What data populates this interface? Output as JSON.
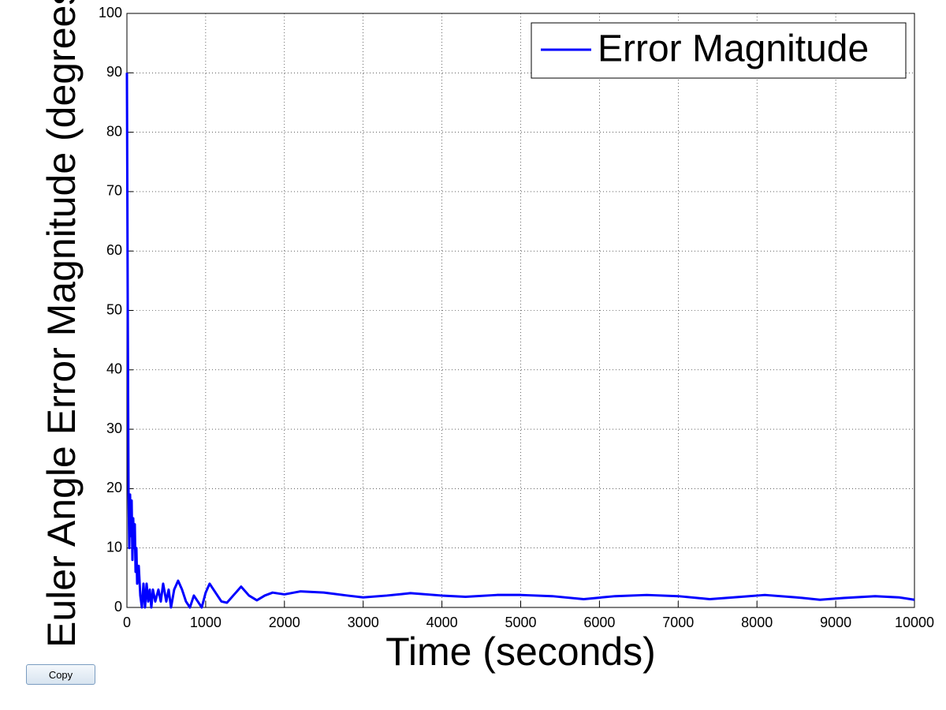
{
  "chart_data": {
    "type": "line",
    "xlabel": "Time (seconds)",
    "ylabel": "Euler Angle Error Magnitude (degrees)",
    "x": [
      0,
      10,
      20,
      30,
      40,
      50,
      60,
      70,
      80,
      90,
      100,
      110,
      120,
      130,
      150,
      170,
      190,
      210,
      230,
      250,
      270,
      290,
      310,
      330,
      360,
      400,
      430,
      460,
      500,
      530,
      560,
      600,
      650,
      700,
      750,
      800,
      850,
      900,
      950,
      1000,
      1050,
      1100,
      1200,
      1270,
      1350,
      1450,
      1550,
      1650,
      1750,
      1850,
      2000,
      2200,
      2500,
      2800,
      3000,
      3300,
      3600,
      4000,
      4300,
      4700,
      5000,
      5400,
      5800,
      6200,
      6600,
      7000,
      7400,
      7800,
      8100,
      8500,
      8800,
      9100,
      9500,
      9800,
      10000
    ],
    "series": [
      {
        "name": "Error Magnitude",
        "color": "#0000ff",
        "values": [
          90,
          52,
          20,
          10,
          19,
          12,
          18,
          8,
          15,
          10,
          14,
          6,
          10,
          4,
          7,
          2,
          0,
          4,
          0,
          4,
          1,
          3,
          0,
          3,
          1,
          3,
          1,
          4,
          1,
          3,
          0,
          3,
          4.5,
          3,
          1,
          0,
          2,
          1,
          0,
          2.5,
          4,
          3,
          1,
          0.8,
          2,
          3.5,
          2,
          1.2,
          2,
          2.5,
          2.2,
          2.7,
          2.5,
          2,
          1.7,
          2,
          2.4,
          2,
          1.8,
          2.1,
          2.1,
          1.9,
          1.4,
          1.9,
          2.1,
          1.9,
          1.4,
          1.8,
          2.1,
          1.7,
          1.3,
          1.6,
          1.9,
          1.7,
          1.3
        ]
      }
    ],
    "xlim": [
      0,
      10000
    ],
    "xticks": [
      0,
      1000,
      2000,
      3000,
      4000,
      5000,
      6000,
      7000,
      8000,
      9000,
      10000
    ],
    "ylim": [
      0,
      100
    ],
    "yticks": [
      0,
      10,
      20,
      30,
      40,
      50,
      60,
      70,
      80,
      90,
      100
    ],
    "grid": true,
    "legend": "top-right"
  },
  "copy_button": "Copy"
}
